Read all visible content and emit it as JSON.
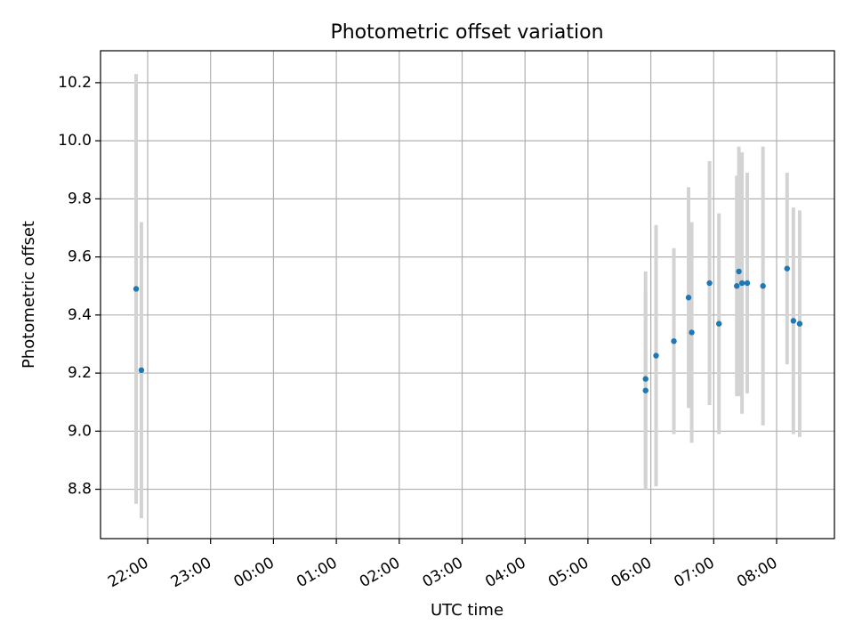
{
  "chart_data": {
    "type": "scatter",
    "title": "Photometric offset variation",
    "xlabel": "UTC time",
    "ylabel": "Photometric offset",
    "x_axis": {
      "kind": "time",
      "ticks": [
        "22:00",
        "23:00",
        "00:00",
        "01:00",
        "02:00",
        "03:00",
        "04:00",
        "05:00",
        "06:00",
        "07:00",
        "08:00"
      ]
    },
    "y_axis": {
      "ylim": [
        8.63,
        10.31
      ],
      "ticks": [
        8.8,
        9.0,
        9.2,
        9.4,
        9.6,
        9.8,
        10.0,
        10.2
      ]
    },
    "grid": true,
    "colors": {
      "point": "#1f77b4",
      "errorbar": "#d3d3d3",
      "grid": "#b0b0b0"
    },
    "points": [
      {
        "time": "21:49",
        "y": 9.49,
        "yerr": 0.74
      },
      {
        "time": "21:54",
        "y": 9.21,
        "yerr": 0.51
      },
      {
        "time": "05:55",
        "y": 9.18,
        "yerr": 0.37
      },
      {
        "time": "05:55",
        "y": 9.14,
        "yerr": 0.34
      },
      {
        "time": "06:05",
        "y": 9.26,
        "yerr": 0.45
      },
      {
        "time": "06:22",
        "y": 9.31,
        "yerr": 0.32
      },
      {
        "time": "06:36",
        "y": 9.46,
        "yerr": 0.38
      },
      {
        "time": "06:39",
        "y": 9.34,
        "yerr": 0.38
      },
      {
        "time": "06:56",
        "y": 9.51,
        "yerr": 0.42
      },
      {
        "time": "07:05",
        "y": 9.37,
        "yerr": 0.38
      },
      {
        "time": "07:22",
        "y": 9.5,
        "yerr": 0.38
      },
      {
        "time": "07:24",
        "y": 9.55,
        "yerr": 0.43
      },
      {
        "time": "07:27",
        "y": 9.51,
        "yerr": 0.45
      },
      {
        "time": "07:32",
        "y": 9.51,
        "yerr": 0.38
      },
      {
        "time": "07:47",
        "y": 9.5,
        "yerr": 0.48
      },
      {
        "time": "08:10",
        "y": 9.56,
        "yerr": 0.33
      },
      {
        "time": "08:16",
        "y": 9.38,
        "yerr": 0.39
      },
      {
        "time": "08:22",
        "y": 9.37,
        "yerr": 0.39
      }
    ]
  }
}
